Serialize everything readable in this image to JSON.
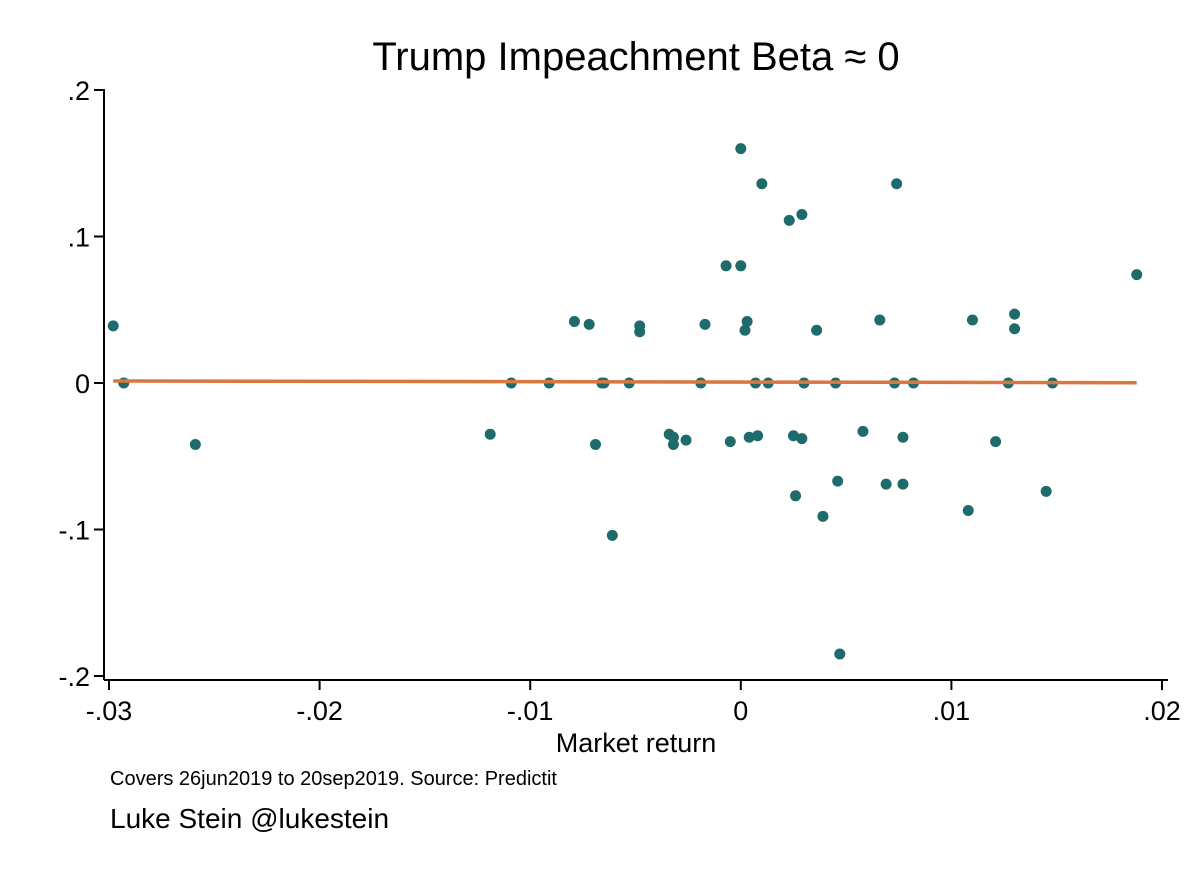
{
  "chart_data": {
    "type": "scatter",
    "title": "Trump Impeachment Beta ≈ 0",
    "xlabel": "Market return",
    "ylabel": "",
    "xlim": [
      -0.03,
      0.02
    ],
    "ylim": [
      -0.2,
      0.2
    ],
    "xticks": [
      -0.03,
      -0.02,
      -0.01,
      0,
      0.01,
      0.02
    ],
    "xtick_labels": [
      "-.03",
      "-.02",
      "-.01",
      "0",
      ".01",
      ".02"
    ],
    "yticks": [
      0.2,
      0.1,
      0,
      -0.1,
      -0.2
    ],
    "ytick_labels": [
      ".2",
      ".1",
      "0",
      "-.1",
      "-.2"
    ],
    "grid": false,
    "legend": "none",
    "colors": {
      "points": "#1f6b6b",
      "fit_line": "#d9773f",
      "axis": "#000000"
    },
    "fit_line": {
      "x": [
        -0.0298,
        0.0188
      ],
      "y": [
        0.0014,
        0.0002
      ]
    },
    "points": [
      {
        "x": -0.0298,
        "y": 0.039
      },
      {
        "x": -0.0293,
        "y": 0.0
      },
      {
        "x": -0.0259,
        "y": -0.042
      },
      {
        "x": -0.0119,
        "y": -0.035
      },
      {
        "x": -0.0109,
        "y": 0.0
      },
      {
        "x": -0.0091,
        "y": 0.0
      },
      {
        "x": -0.0079,
        "y": 0.042
      },
      {
        "x": -0.0072,
        "y": 0.04
      },
      {
        "x": -0.0069,
        "y": -0.042
      },
      {
        "x": -0.0066,
        "y": 0.0
      },
      {
        "x": -0.0065,
        "y": 0.0
      },
      {
        "x": -0.0061,
        "y": -0.104
      },
      {
        "x": -0.0053,
        "y": 0.0
      },
      {
        "x": -0.0048,
        "y": 0.039
      },
      {
        "x": -0.0048,
        "y": 0.035
      },
      {
        "x": -0.0034,
        "y": -0.035
      },
      {
        "x": -0.0032,
        "y": -0.042
      },
      {
        "x": -0.0032,
        "y": -0.037
      },
      {
        "x": -0.0026,
        "y": -0.039
      },
      {
        "x": -0.0019,
        "y": 0.0
      },
      {
        "x": -0.0017,
        "y": 0.04
      },
      {
        "x": -0.0007,
        "y": 0.08
      },
      {
        "x": -0.0005,
        "y": -0.04
      },
      {
        "x": 0.0,
        "y": 0.16
      },
      {
        "x": 0.0,
        "y": 0.08
      },
      {
        "x": 0.0002,
        "y": 0.036
      },
      {
        "x": 0.0003,
        "y": 0.042
      },
      {
        "x": 0.0004,
        "y": -0.037
      },
      {
        "x": 0.0007,
        "y": 0.0
      },
      {
        "x": 0.0008,
        "y": -0.036
      },
      {
        "x": 0.001,
        "y": 0.136
      },
      {
        "x": 0.0013,
        "y": 0.0
      },
      {
        "x": 0.0023,
        "y": 0.111
      },
      {
        "x": 0.0025,
        "y": -0.036
      },
      {
        "x": 0.0026,
        "y": -0.077
      },
      {
        "x": 0.0029,
        "y": 0.115
      },
      {
        "x": 0.0029,
        "y": -0.038
      },
      {
        "x": 0.003,
        "y": 0.0
      },
      {
        "x": 0.0036,
        "y": 0.036
      },
      {
        "x": 0.0039,
        "y": -0.091
      },
      {
        "x": 0.0045,
        "y": 0.0
      },
      {
        "x": 0.0046,
        "y": -0.067
      },
      {
        "x": 0.0047,
        "y": -0.185
      },
      {
        "x": 0.0058,
        "y": -0.033
      },
      {
        "x": 0.0066,
        "y": 0.043
      },
      {
        "x": 0.0069,
        "y": -0.069
      },
      {
        "x": 0.0073,
        "y": 0.0
      },
      {
        "x": 0.0074,
        "y": 0.136
      },
      {
        "x": 0.0077,
        "y": -0.037
      },
      {
        "x": 0.0077,
        "y": -0.069
      },
      {
        "x": 0.0082,
        "y": 0.0
      },
      {
        "x": 0.0108,
        "y": -0.087
      },
      {
        "x": 0.011,
        "y": 0.043
      },
      {
        "x": 0.0121,
        "y": -0.04
      },
      {
        "x": 0.0127,
        "y": 0.0
      },
      {
        "x": 0.013,
        "y": 0.047
      },
      {
        "x": 0.013,
        "y": 0.037
      },
      {
        "x": 0.0145,
        "y": -0.074
      },
      {
        "x": 0.0148,
        "y": 0.0
      },
      {
        "x": 0.0188,
        "y": 0.074
      }
    ]
  },
  "footer": {
    "caption": "Covers 26jun2019 to 20sep2019. Source: Predictit",
    "credit": "Luke Stein @lukestein"
  }
}
